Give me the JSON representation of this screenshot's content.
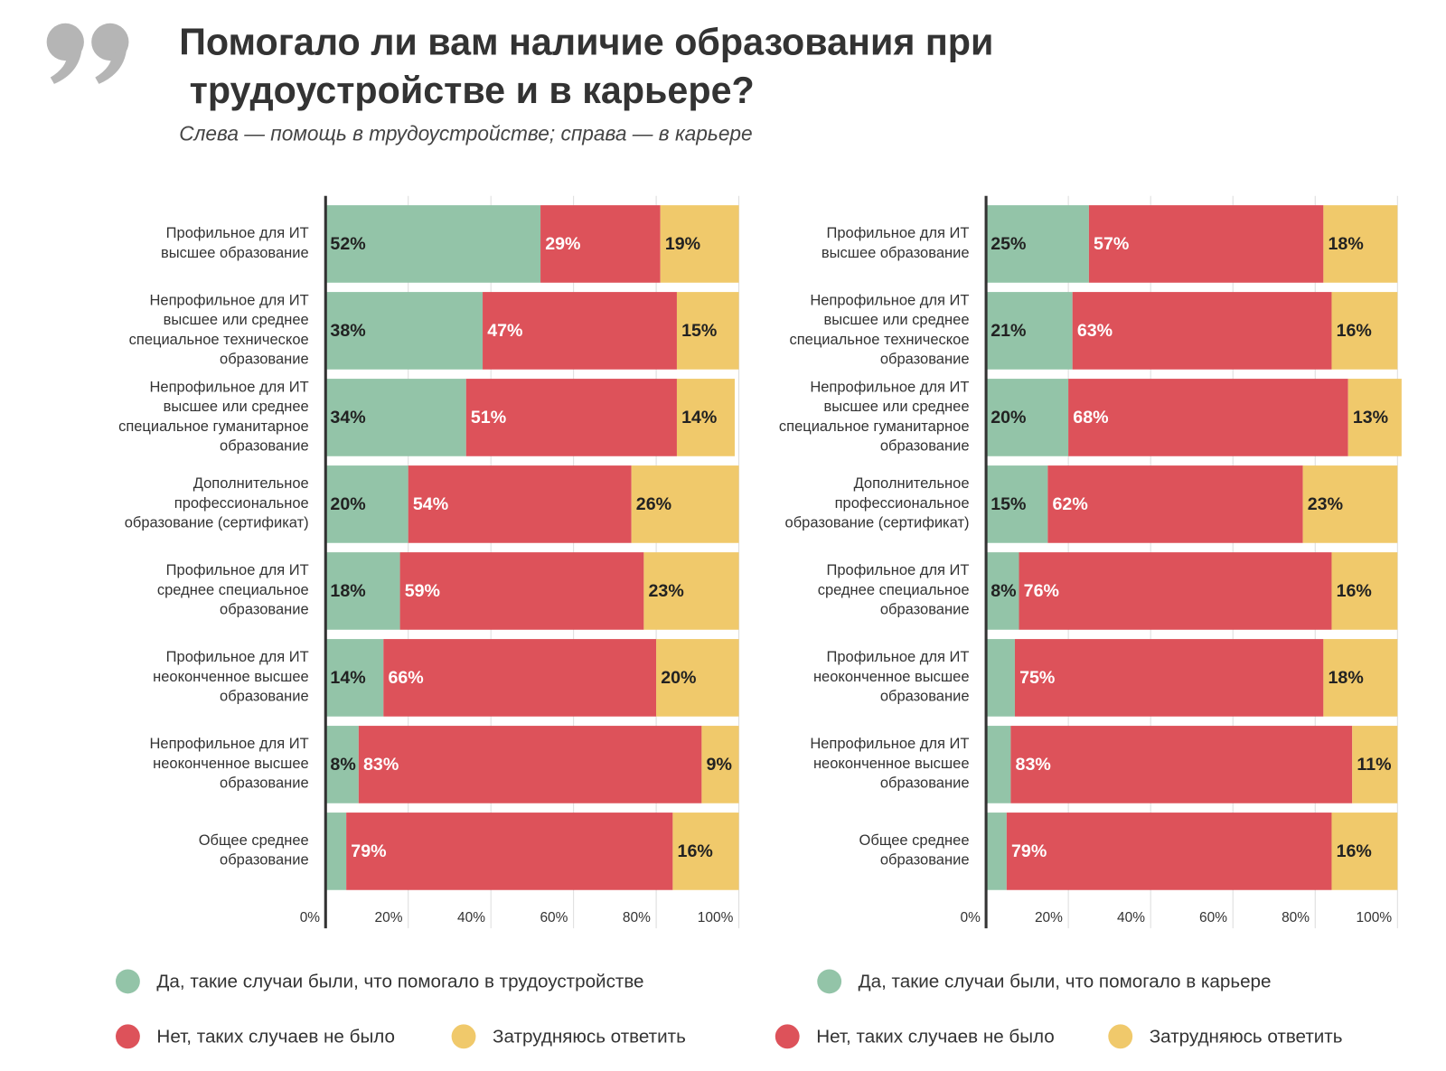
{
  "title": "Помогало ли вам наличие образования при трудоустройстве и в карьере?",
  "subtitle": "Слева — помощь в трудоустройстве; справа — в карьере",
  "chart_data": [
    {
      "type": "bar",
      "orientation": "horizontal",
      "stacked": true,
      "categories": [
        "Профильное для ИТ\nвысшее образование",
        "Непрофильное для ИТ\nвысшее или среднее\nспециальное техническое\nобразование",
        "Непрофильное для ИТ\nвысшее или среднее\nспециальное гуманитарное\nобразование",
        "Дополнительное\nпрофессиональное\nобразование (сертификат)",
        "Профильное для ИТ\nсреднее специальное\nобразование",
        "Профильное для ИТ\nнеоконченное высшее\nобразование",
        "Непрофильное для ИТ\nнеоконченное высшее\nобразование",
        "Общее среднее\nобразование"
      ],
      "series": [
        {
          "name": "Да, такие случаи были, что помогало в трудоустройстве",
          "color": "#93c4a8",
          "values": [
            52,
            38,
            34,
            20,
            18,
            14,
            8,
            5
          ],
          "value_labels": [
            "52%",
            "38%",
            "34%",
            "20%",
            "18%",
            "14%",
            "8%",
            null
          ]
        },
        {
          "name": "Нет, таких случаев не было",
          "color": "#dd525a",
          "values": [
            29,
            47,
            51,
            54,
            59,
            66,
            83,
            79
          ],
          "value_labels": [
            "29%",
            "47%",
            "51%",
            "54%",
            "59%",
            "66%",
            "83%",
            "79%"
          ]
        },
        {
          "name": "Затрудняюсь ответить",
          "color": "#f0c96b",
          "values": [
            19,
            15,
            14,
            26,
            23,
            20,
            9,
            16
          ],
          "value_labels": [
            "19%",
            "15%",
            "14%",
            "26%",
            "23%",
            "20%",
            "9%",
            "16%"
          ]
        }
      ],
      "xlim": [
        0,
        100
      ],
      "xticks": [
        {
          "value": 0,
          "label": "0%"
        },
        {
          "value": 20,
          "label": "20%"
        },
        {
          "value": 40,
          "label": "40%"
        },
        {
          "value": 60,
          "label": "60%"
        },
        {
          "value": 80,
          "label": "80%"
        },
        {
          "value": 100,
          "label": "100%"
        }
      ],
      "grid": true
    },
    {
      "type": "bar",
      "orientation": "horizontal",
      "stacked": true,
      "categories": [
        "Профильное для ИТ\nвысшее образование",
        "Непрофильное для ИТ\nвысшее или среднее\nспециальное техническое\nобразование",
        "Непрофильное для ИТ\nвысшее или среднее\nспециальное гуманитарное\nобразование",
        "Дополнительное\nпрофессиональное\nобразование (сертификат)",
        "Профильное для ИТ\nсреднее специальное\nобразование",
        "Профильное для ИТ\nнеоконченное высшее\nобразование",
        "Непрофильное для ИТ\nнеоконченное высшее\nобразование",
        "Общее среднее\nобразование"
      ],
      "series": [
        {
          "name": "Да, такие случаи были, что помогало в карьере",
          "color": "#93c4a8",
          "values": [
            25,
            21,
            20,
            15,
            8,
            7,
            6,
            5
          ],
          "value_labels": [
            "25%",
            "21%",
            "20%",
            "15%",
            "8%",
            null,
            null,
            null
          ]
        },
        {
          "name": "Нет, таких случаев не было",
          "color": "#dd525a",
          "values": [
            57,
            63,
            68,
            62,
            76,
            75,
            83,
            79
          ],
          "value_labels": [
            "57%",
            "63%",
            "68%",
            "62%",
            "76%",
            "75%",
            "83%",
            "79%"
          ]
        },
        {
          "name": "Затрудняюсь ответить",
          "color": "#f0c96b",
          "values": [
            18,
            16,
            13,
            23,
            16,
            18,
            11,
            16
          ],
          "value_labels": [
            "18%",
            "16%",
            "13%",
            "23%",
            "16%",
            "18%",
            "11%",
            "16%"
          ]
        }
      ],
      "xlim": [
        0,
        100
      ],
      "xticks": [
        {
          "value": 0,
          "label": "0%"
        },
        {
          "value": 20,
          "label": "20%"
        },
        {
          "value": 40,
          "label": "40%"
        },
        {
          "value": 60,
          "label": "60%"
        },
        {
          "value": 80,
          "label": "80%"
        },
        {
          "value": 100,
          "label": "100%"
        }
      ],
      "grid": true
    }
  ]
}
